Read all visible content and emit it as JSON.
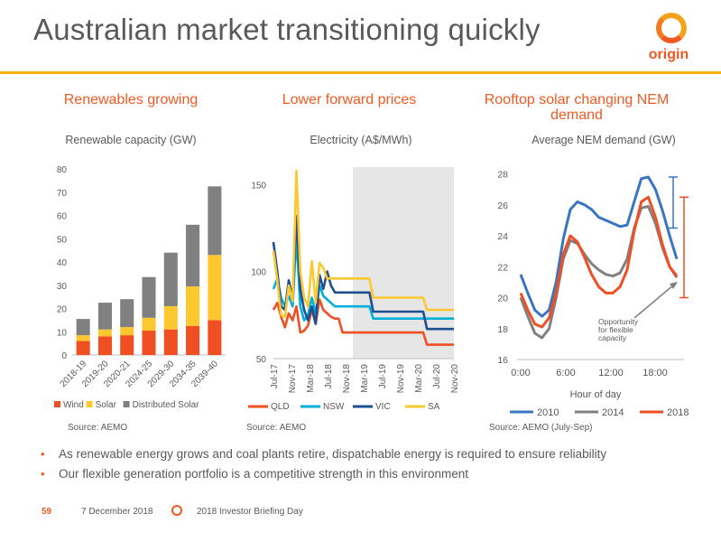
{
  "header": {
    "title": "Australian market transitioning quickly",
    "logo_text": "origin"
  },
  "panels": [
    {
      "title": "Renewables growing",
      "subtitle": "Renewable capacity (GW)",
      "source": "Source: AEMO"
    },
    {
      "title": "Lower forward prices",
      "subtitle": "Electricity (A$/MWh)",
      "source": "Source: AEMO"
    },
    {
      "title": "Rooftop solar changing NEM demand",
      "subtitle": "Average NEM demand (GW)",
      "source": "Source: AEMO (July-Sep)"
    }
  ],
  "bullets": [
    "As renewable energy grows and coal plants retire, dispatchable energy is required to ensure reliability",
    "Our flexible generation portfolio is a competitive strength in this environment"
  ],
  "footer": {
    "page": "59",
    "date": "7 December 2018",
    "event": "2018 Investor Briefing Day"
  },
  "colors": {
    "accent": "#f05a22",
    "rule": "#f4b400"
  },
  "chart_data": [
    {
      "type": "bar",
      "stacked": true,
      "categories": [
        "2018-19",
        "2019-20",
        "2020-21",
        "2024-25",
        "2029-30",
        "2034-35",
        "2039-40"
      ],
      "series": [
        {
          "name": "Wind",
          "color": "#f04e23",
          "values": [
            6,
            8,
            8.5,
            10.5,
            11,
            12.5,
            15
          ]
        },
        {
          "name": "Solar",
          "color": "#fdc82f",
          "values": [
            2.5,
            3,
            3.5,
            5.5,
            10,
            17,
            28
          ]
        },
        {
          "name": "Distributed Solar",
          "color": "#808080",
          "values": [
            7,
            11.5,
            12,
            17.5,
            23,
            26.5,
            29.5
          ]
        }
      ],
      "ylim": [
        0,
        80
      ],
      "yticks": [
        0,
        10,
        20,
        30,
        40,
        50,
        60,
        70,
        80
      ],
      "legend": "bottom"
    },
    {
      "type": "line",
      "x_labels": [
        "Jul-17",
        "Nov-17",
        "Mar-18",
        "Jul-18",
        "Nov-18",
        "Mar-19",
        "Jul-19",
        "Nov-19",
        "Mar-20",
        "Jul-20",
        "Nov-20"
      ],
      "ylim": [
        50,
        160
      ],
      "yticks": [
        50,
        100,
        150
      ],
      "forward_region_start": "Nov-18",
      "series": [
        {
          "name": "QLD",
          "color": "#f04e23",
          "values": [
            78,
            82,
            74,
            68,
            76,
            72,
            80,
            65,
            66,
            69,
            78,
            70,
            84,
            78,
            76,
            74,
            73,
            73,
            65,
            65,
            65,
            65,
            65,
            65,
            65,
            65,
            65,
            65,
            65,
            65,
            65,
            65,
            65,
            65,
            65,
            65,
            65,
            65,
            65,
            65,
            58,
            58,
            58,
            58,
            58,
            58,
            58,
            58
          ]
        },
        {
          "name": "NSW",
          "color": "#00b0d8",
          "values": [
            90,
            96,
            85,
            80,
            86,
            80,
            120,
            80,
            72,
            75,
            85,
            76,
            92,
            86,
            84,
            82,
            80,
            80,
            80,
            80,
            80,
            80,
            80,
            80,
            80,
            80,
            73,
            73,
            73,
            73,
            73,
            73,
            73,
            73,
            73,
            73,
            73,
            73,
            73,
            73,
            73,
            73,
            73,
            73,
            73,
            73,
            73,
            73
          ]
        },
        {
          "name": "VIC",
          "color": "#1d4f91",
          "values": [
            117,
            100,
            80,
            78,
            95,
            85,
            132,
            90,
            78,
            72,
            80,
            70,
            98,
            90,
            100,
            92,
            88,
            88,
            88,
            88,
            88,
            88,
            88,
            88,
            88,
            88,
            77,
            77,
            77,
            77,
            77,
            77,
            77,
            77,
            77,
            77,
            77,
            77,
            77,
            77,
            67,
            67,
            67,
            67,
            67,
            67,
            67,
            67
          ]
        },
        {
          "name": "SA",
          "color": "#fdc82f",
          "values": [
            112,
            95,
            75,
            74,
            92,
            83,
            158,
            100,
            85,
            80,
            106,
            82,
            105,
            102,
            96,
            96,
            96,
            96,
            96,
            96,
            96,
            96,
            96,
            96,
            96,
            96,
            85,
            85,
            85,
            85,
            85,
            85,
            85,
            85,
            85,
            85,
            85,
            85,
            85,
            85,
            78,
            78,
            78,
            78,
            78,
            78,
            78,
            78
          ]
        }
      ],
      "legend": "bottom"
    },
    {
      "type": "line",
      "x_labels": [
        "0:00",
        "6:00",
        "12:00",
        "18:00"
      ],
      "xlabel": "Hour of day",
      "ylim": [
        16,
        28.5
      ],
      "yticks": [
        16,
        18,
        20,
        22,
        24,
        26,
        28
      ],
      "series": [
        {
          "name": "2010",
          "color": "#3a75c4",
          "values": [
            21.5,
            20.3,
            19.2,
            18.8,
            19.2,
            21,
            23.8,
            25.7,
            26.2,
            26,
            25.7,
            25.2,
            25,
            24.8,
            24.6,
            24.7,
            26.2,
            27.7,
            27.8,
            27,
            25.6,
            24,
            22.5
          ]
        },
        {
          "name": "2014",
          "color": "#808080",
          "values": [
            20,
            18.8,
            17.7,
            17.4,
            18,
            20,
            22.5,
            23.7,
            23.5,
            22.8,
            22.2,
            21.8,
            21.5,
            21.4,
            21.6,
            22.5,
            24.5,
            25.8,
            25.9,
            24.8,
            23.2,
            22,
            21.3
          ]
        },
        {
          "name": "2018",
          "color": "#f04e23",
          "values": [
            20.3,
            19.2,
            18.3,
            18.1,
            18.7,
            20.3,
            22.8,
            24,
            23.6,
            22.6,
            21.5,
            20.7,
            20.3,
            20.3,
            20.7,
            21.8,
            24.3,
            26.2,
            26.5,
            25.2,
            23.4,
            22,
            21.4
          ]
        }
      ],
      "range_2010": [
        24.5,
        27.8
      ],
      "range_2018": [
        20,
        26.5
      ],
      "annotation": "Opportunity for flexible capacity",
      "legend": "bottom"
    }
  ]
}
